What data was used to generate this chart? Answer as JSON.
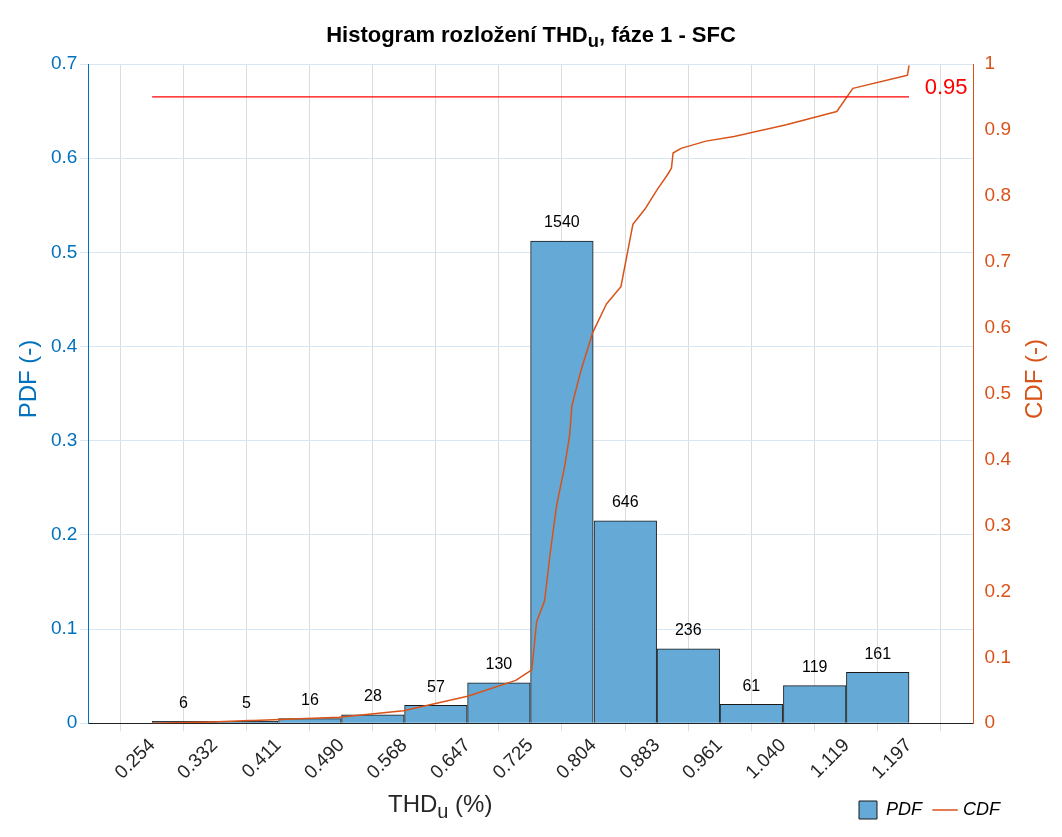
{
  "chart_data": {
    "type": "histogram",
    "title": "Histogram rozložení  THD$_{u}$, fáze 1 - SFC",
    "xlabel": "THD$_{u}$ (%)",
    "ylabel": "PDF (-)",
    "y2label": "CDF (-)",
    "bins": [
      0.254,
      0.332,
      0.411,
      0.49,
      0.568,
      0.647,
      0.725,
      0.804,
      0.883,
      0.961,
      1.04,
      1.119,
      1.197
    ],
    "series": [
      {
        "name": "PDF",
        "color": "#65a9d7",
        "values": [
          0.002,
          0.002,
          0.005,
          0.009,
          0.019,
          0.043,
          0.512,
          0.215,
          0.079,
          0.02,
          0.04,
          0.054
        ]
      },
      {
        "name": "CDF",
        "type": "line",
        "axis": "y2",
        "color": "#d95319",
        "x": [
          0.254,
          0.328,
          0.487,
          0.567,
          0.647,
          0.707,
          0.727,
          0.733,
          0.743,
          0.75,
          0.758,
          0.768,
          0.774,
          0.777,
          0.788,
          0.803,
          0.82,
          0.838,
          0.853,
          0.868,
          0.883,
          0.896,
          0.901,
          0.903,
          0.913,
          0.944,
          0.979,
          1.044,
          1.107,
          1.127,
          1.195,
          1.197
        ],
        "values": [
          0,
          0.002,
          0.009,
          0.019,
          0.041,
          0.065,
          0.081,
          0.154,
          0.186,
          0.259,
          0.331,
          0.39,
          0.436,
          0.482,
          0.534,
          0.593,
          0.636,
          0.662,
          0.757,
          0.78,
          0.809,
          0.832,
          0.842,
          0.865,
          0.872,
          0.883,
          0.89,
          0.908,
          0.928,
          0.963,
          0.983,
          0.998
        ]
      }
    ],
    "xlim": [
      0.217,
      1.235
    ],
    "xticks": [
      0.254,
      0.332,
      0.411,
      {
        "value": 0.49,
        "label": "0.490"
      },
      0.568,
      0.647,
      0.725,
      0.804,
      0.883,
      0.961,
      {
        "value": 1.04,
        "label": "1.040"
      },
      1.119,
      1.197
    ],
    "annotations": [
      {
        "text": "6",
        "x": 0.293,
        "y": 0.002
      },
      {
        "text": "5",
        "x": 0.3715,
        "y": 0.002
      },
      {
        "text": "16",
        "x": 0.4505,
        "y": 0.005
      },
      {
        "text": "28",
        "x": 0.529,
        "y": 0.009
      },
      {
        "text": "57",
        "x": 0.6075,
        "y": 0.019
      },
      {
        "text": "130",
        "x": 0.686,
        "y": 0.043
      },
      {
        "text": "1540",
        "x": 0.7645,
        "y": 0.512
      },
      {
        "text": "646",
        "x": 0.8435,
        "y": 0.215
      },
      {
        "text": "236",
        "x": 0.922,
        "y": 0.079
      },
      {
        "text": "61",
        "x": 1.0005,
        "y": 0.02
      },
      {
        "text": "119",
        "x": 1.0795,
        "y": 0.04
      },
      {
        "text": "161",
        "x": 1.158,
        "y": 0.054
      }
    ],
    "ylim": [
      0,
      0.7
    ],
    "yticks": [
      0,
      0.1,
      0.2,
      0.3,
      0.4,
      0.5,
      0.6,
      0.7
    ],
    "y2lim": [
      0,
      1
    ],
    "y2ticks": [
      0,
      0.1,
      0.2,
      0.3,
      0.4,
      0.5,
      0.6,
      0.7,
      0.8,
      0.9,
      1
    ],
    "ref_lines": [
      {
        "axis": "y2",
        "value": 0.95,
        "label": "0.95",
        "color": "#ff0000"
      }
    ],
    "grid": true,
    "legend": "bottom right"
  }
}
